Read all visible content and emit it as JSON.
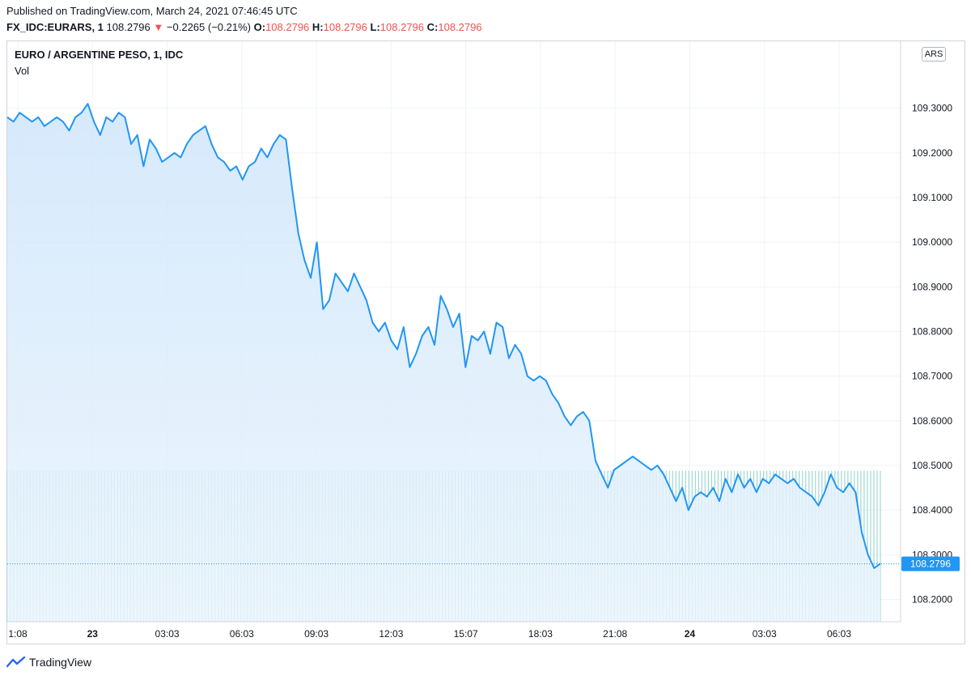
{
  "header": {
    "published": "Published on TradingView.com, March 24, 2021 07:46:45 UTC",
    "symbol": "FX_IDC:EURARS, 1",
    "last": "108.2796",
    "change_arrow": "▼",
    "change": "−0.2265 (−0.21%)",
    "o_label": "O:",
    "o_value": "108.2796",
    "h_label": "H:",
    "h_value": "108.2796",
    "l_label": "L:",
    "l_value": "108.2796",
    "c_label": "C:",
    "c_value": "108.2796"
  },
  "legend": {
    "title": "EURO / ARGENTINE PESO, 1, IDC",
    "vol": "Vol"
  },
  "currency_tag": "ARS",
  "price_label": "108.2796",
  "footer": {
    "brand": "TradingView",
    "logo_icon": "tradingview-logo-icon"
  },
  "colors": {
    "line": "#2196f3",
    "fill_top": "#cfe6fb",
    "volume": "#26a69a",
    "down": "#ef5350",
    "price_tag": "#2196f3"
  },
  "chart_data": {
    "type": "area",
    "title": "EURO / ARGENTINE PESO, 1, IDC",
    "ylabel": "ARS",
    "ylim": [
      108.15,
      109.45
    ],
    "y_ticks": [
      "109.3000",
      "109.2000",
      "109.1000",
      "109.0000",
      "108.9000",
      "108.8000",
      "108.7000",
      "108.6000",
      "108.5000",
      "108.4000",
      "108.3000",
      "108.2000"
    ],
    "y_tick_values": [
      109.3,
      109.2,
      109.1,
      109.0,
      108.9,
      108.8,
      108.7,
      108.6,
      108.5,
      108.4,
      108.3,
      108.2
    ],
    "x_ticks": [
      "1:08",
      "23",
      "03:03",
      "06:03",
      "09:03",
      "12:03",
      "15:07",
      "18:03",
      "21:08",
      "24",
      "03:03",
      "06:03"
    ],
    "x_ticks_bold": [
      false,
      true,
      false,
      false,
      false,
      false,
      false,
      false,
      false,
      true,
      false,
      false
    ],
    "series": [
      {
        "values": [
          109.28,
          109.27,
          109.29,
          109.28,
          109.27,
          109.28,
          109.26,
          109.27,
          109.28,
          109.27,
          109.25,
          109.28,
          109.29,
          109.31,
          109.27,
          109.24,
          109.28,
          109.27,
          109.29,
          109.28,
          109.22,
          109.24,
          109.17,
          109.23,
          109.21,
          109.18,
          109.19,
          109.2,
          109.19,
          109.22,
          109.24,
          109.25,
          109.26,
          109.22,
          109.19,
          109.18,
          109.16,
          109.17,
          109.14,
          109.17,
          109.18,
          109.21,
          109.19,
          109.22,
          109.24,
          109.23,
          109.12,
          109.02,
          108.96,
          108.92,
          109.0,
          108.85,
          108.87,
          108.93,
          108.91,
          108.89,
          108.93,
          108.9,
          108.87,
          108.82,
          108.8,
          108.82,
          108.78,
          108.76,
          108.81,
          108.72,
          108.75,
          108.79,
          108.81,
          108.77,
          108.88,
          108.85,
          108.81,
          108.84,
          108.72,
          108.79,
          108.78,
          108.8,
          108.75,
          108.82,
          108.81,
          108.74,
          108.77,
          108.75,
          108.7,
          108.69,
          108.7,
          108.69,
          108.66,
          108.64,
          108.61,
          108.59,
          108.61,
          108.62,
          108.6,
          108.51,
          108.48,
          108.45,
          108.49,
          108.5,
          108.51,
          108.52,
          108.51,
          108.5,
          108.49,
          108.5,
          108.48,
          108.45,
          108.42,
          108.45,
          108.4,
          108.43,
          108.44,
          108.43,
          108.45,
          108.42,
          108.47,
          108.44,
          108.48,
          108.45,
          108.47,
          108.44,
          108.47,
          108.46,
          108.48,
          108.47,
          108.46,
          108.47,
          108.45,
          108.44,
          108.43,
          108.41,
          108.44,
          108.48,
          108.45,
          108.44,
          108.46,
          108.44,
          108.35,
          108.3,
          108.27,
          108.28
        ],
        "x_start": 0,
        "x_end": 1
      }
    ],
    "volume": {
      "level": 0.26,
      "bars": 270
    },
    "last_value": 108.2796,
    "grid": true
  }
}
